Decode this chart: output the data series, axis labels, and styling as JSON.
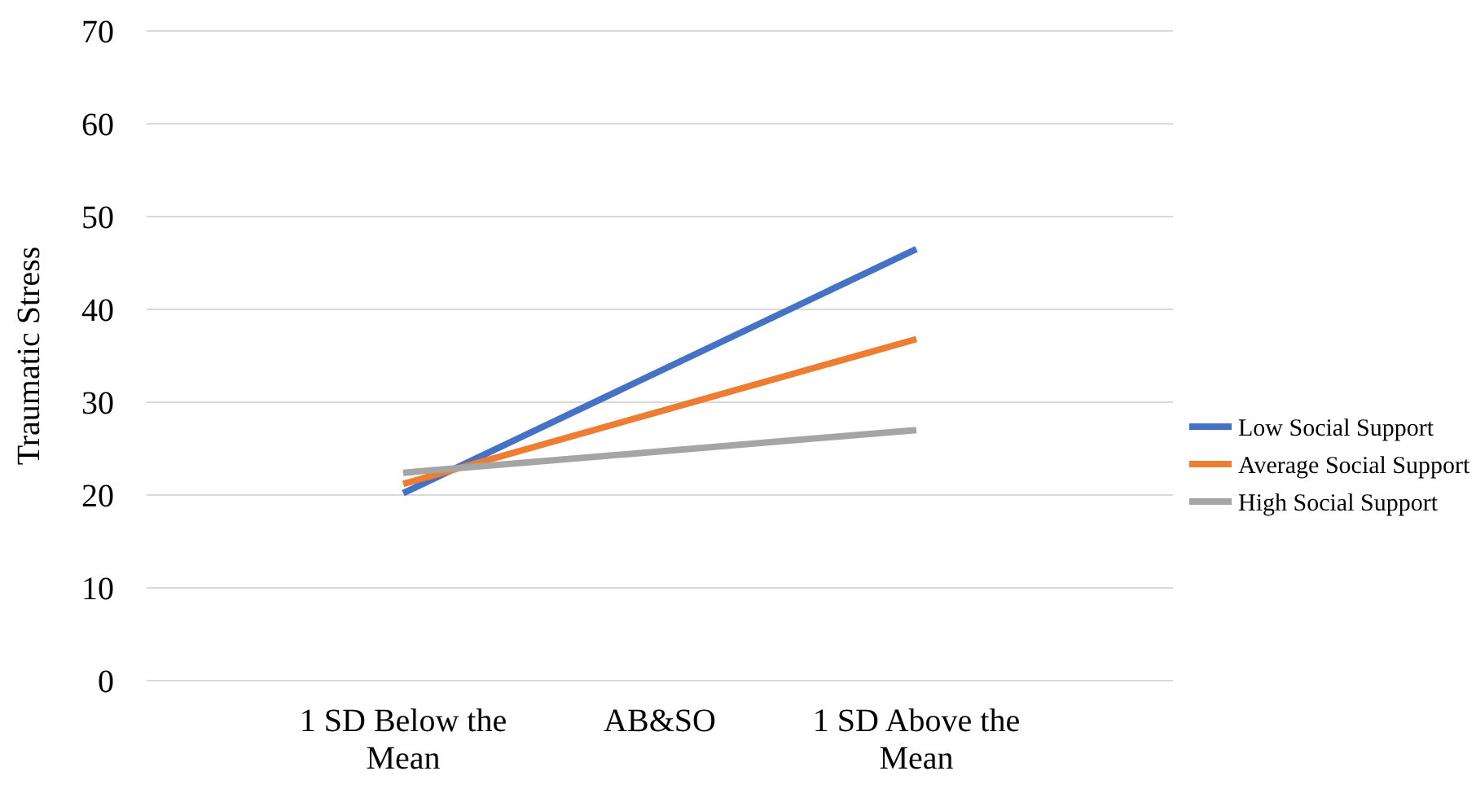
{
  "chart_data": {
    "type": "line",
    "xlabel": "AB&SO",
    "ylabel": "Traumatic Stress",
    "categories": [
      "1 SD Below the Mean",
      "1 SD Above the Mean"
    ],
    "series": [
      {
        "name": "Low Social Support",
        "color": "#4472c4",
        "values": [
          20.2,
          46.5
        ]
      },
      {
        "name": "Average Social Support",
        "color": "#ed7d31",
        "values": [
          21.2,
          36.8
        ]
      },
      {
        "name": "High Social Support",
        "color": "#a5a5a5",
        "values": [
          22.4,
          27
        ]
      }
    ],
    "ylim": [
      0,
      70
    ],
    "yticks": [
      0,
      10,
      20,
      30,
      40,
      50,
      60,
      70
    ],
    "grid": "y",
    "legend": "right",
    "marker": "none",
    "line_style": "solid"
  }
}
